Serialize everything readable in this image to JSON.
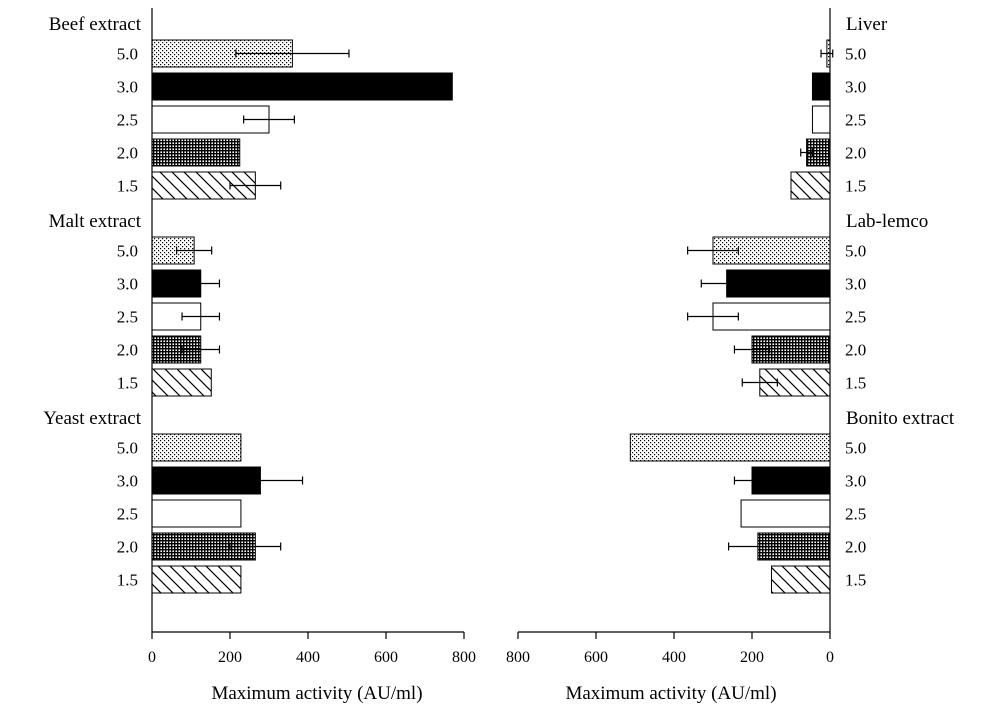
{
  "chart_data": [
    {
      "type": "bar",
      "orientation": "horizontal",
      "panel": "left",
      "xlabel": "Maximum activity (AU/ml)",
      "xlim": [
        0,
        800
      ],
      "xticks": [
        "0",
        "200",
        "400",
        "600",
        "800"
      ],
      "categories": [
        "5.0",
        "3.0",
        "2.5",
        "2.0",
        "1.5"
      ],
      "groups": [
        {
          "name": "Beef extract",
          "values": [
            360,
            770,
            300,
            225,
            265
          ],
          "errors": [
            145,
            0,
            65,
            0,
            65
          ]
        },
        {
          "name": "Malt extract",
          "values": [
            108,
            125,
            125,
            125,
            152
          ],
          "errors": [
            45,
            48,
            48,
            48,
            0
          ]
        },
        {
          "name": "Yeast extract",
          "values": [
            228,
            278,
            228,
            265,
            228
          ],
          "errors": [
            0,
            108,
            0,
            65,
            0
          ]
        }
      ]
    },
    {
      "type": "bar",
      "orientation": "horizontal",
      "panel": "right",
      "xlabel": "Maximum activity (AU/ml)",
      "xlim": [
        800,
        0
      ],
      "xticks": [
        "800",
        "600",
        "400",
        "200",
        "0"
      ],
      "categories": [
        "5.0",
        "3.0",
        "2.5",
        "2.0",
        "1.5"
      ],
      "groups": [
        {
          "name": "Liver",
          "values": [
            8,
            45,
            45,
            60,
            100
          ],
          "errors": [
            15,
            0,
            0,
            15,
            0
          ]
        },
        {
          "name": "Lab-lemco",
          "values": [
            300,
            265,
            300,
            200,
            180
          ],
          "errors": [
            65,
            65,
            65,
            45,
            45
          ]
        },
        {
          "name": "Bonito extract",
          "values": [
            512,
            200,
            228,
            185,
            150
          ],
          "errors": [
            0,
            45,
            0,
            75,
            0
          ]
        }
      ]
    }
  ]
}
